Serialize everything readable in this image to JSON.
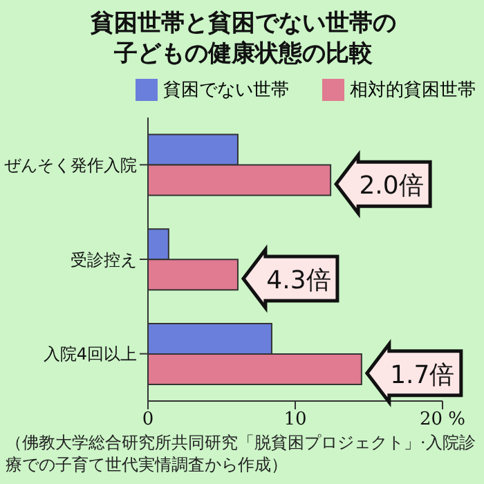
{
  "chart_data": {
    "type": "bar",
    "orientation": "horizontal",
    "title": "貧困世帯と貧困でない世帯の子どもの健康状態の比較",
    "categories": [
      "ぜんそく発作入院",
      "受診控え",
      "入院4回以上"
    ],
    "series": [
      {
        "name": "貧困でない世帯",
        "color": "#6a7fdc",
        "values": [
          6.1,
          1.4,
          8.4
        ]
      },
      {
        "name": "相対的貧困世帯",
        "color": "#e07b91",
        "values": [
          12.4,
          6.1,
          14.5
        ]
      }
    ],
    "xlim": [
      0,
      20
    ],
    "xticks": [
      0,
      10,
      {
        "value": 20,
        "label": "20 %"
      }
    ],
    "legend": "top",
    "grid": false,
    "annotations": [
      {
        "text": "2.0倍",
        "x": 12.4,
        "y": "ぜんそく発作入院"
      },
      {
        "text": "4.3倍",
        "x": 6.1,
        "y": "受診控え"
      },
      {
        "text": "1.7倍",
        "x": 14.5,
        "y": "入院4回以上"
      },
      "（佛教大学総合研究所共同研究「脱貧困プロジェクト」·入院診療での子育て世代実情調査から作成）"
    ]
  }
}
